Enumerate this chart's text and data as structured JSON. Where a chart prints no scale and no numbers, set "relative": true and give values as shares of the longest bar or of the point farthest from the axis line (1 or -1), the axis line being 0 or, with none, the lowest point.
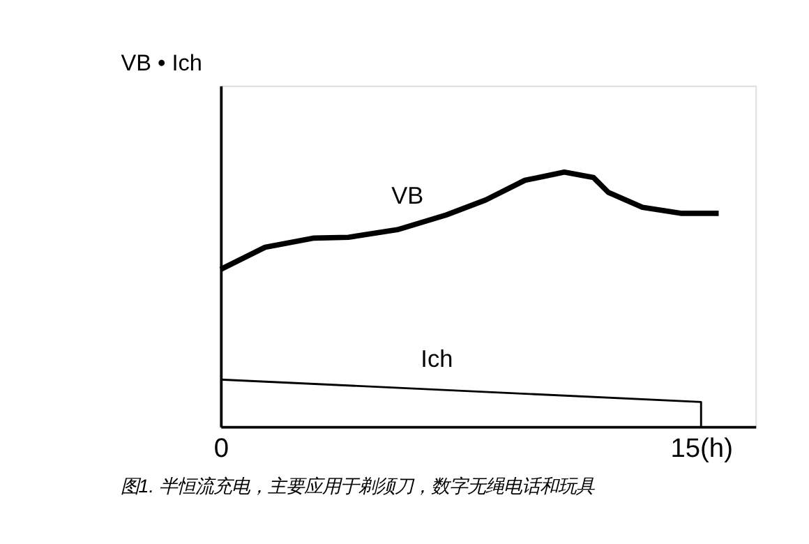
{
  "chart_data": {
    "type": "line",
    "relative": true,
    "ylabel": "VB • Ich",
    "xlim": [
      0,
      16.7
    ],
    "xticks": [
      0,
      {
        "value": 15,
        "label": "15(h)"
      }
    ],
    "grid": false,
    "marker": "none",
    "line_style": "solid",
    "annotations": [
      "图1. 半恒流充电，主要应用于剃须刀，数字无绳电话和玩具"
    ],
    "series": [
      {
        "name": "VB",
        "color": "#000000",
        "x": [
          0,
          1.39,
          2.92,
          3.99,
          5.52,
          7.05,
          8.28,
          9.5,
          10.73,
          11.64,
          12.1,
          13.17,
          14.4,
          15.55
        ],
        "values": [
          0.618,
          0.705,
          0.741,
          0.744,
          0.774,
          0.832,
          0.891,
          0.968,
          1,
          0.979,
          0.921,
          0.862,
          0.838,
          0.838
        ]
      },
      {
        "name": "Ich",
        "color": "#000000",
        "x": [
          0,
          15,
          15
        ],
        "values": [
          0.185,
          0.097,
          0
        ]
      }
    ]
  }
}
